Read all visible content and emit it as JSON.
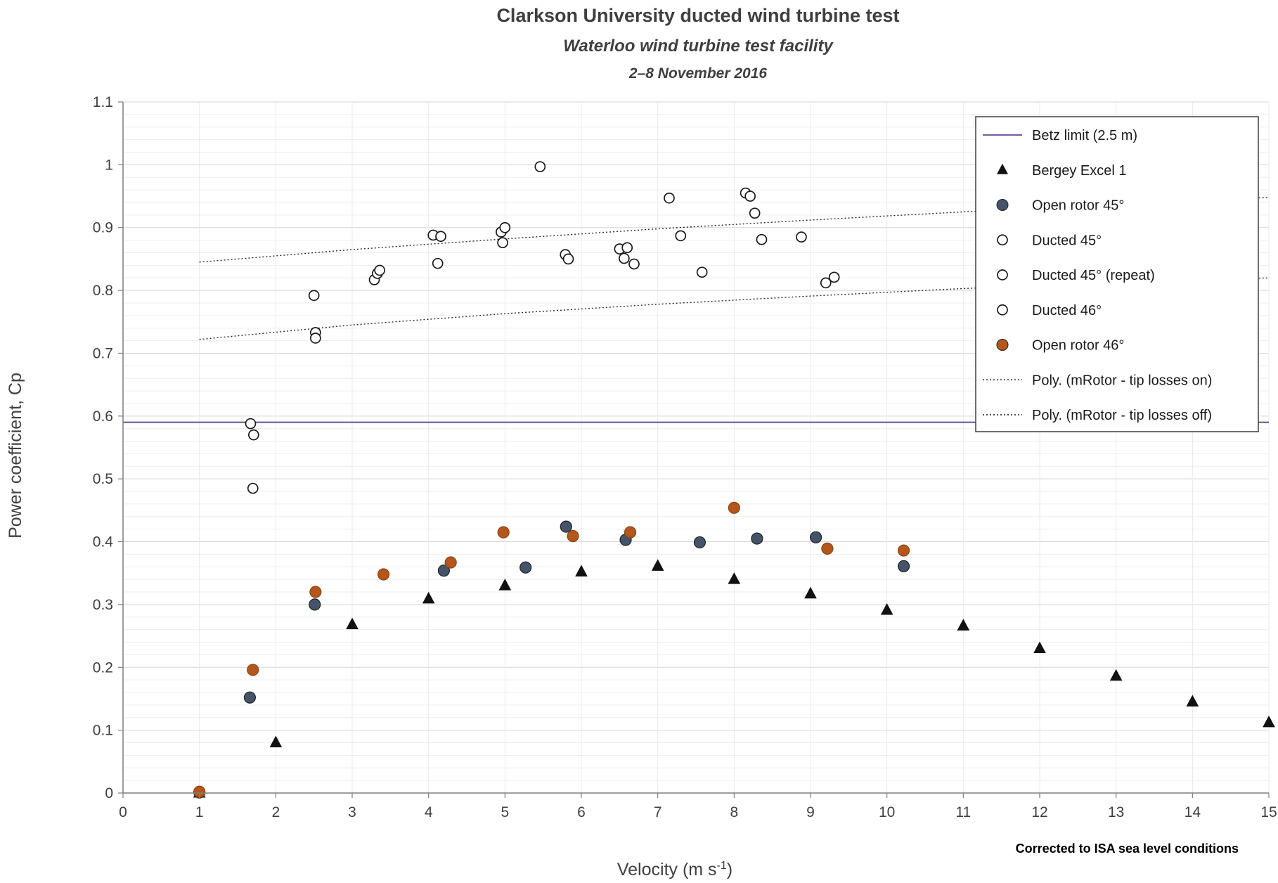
{
  "header": {
    "title": "Clarkson University ducted wind turbine test",
    "subtitle": "Waterloo wind turbine test facility",
    "date_range": "2–8 November 2016"
  },
  "axes": {
    "y_label": "Power coefficient, Cp",
    "x_label_pre": "Velocity (m s",
    "x_label_sup": "-1",
    "x_label_post": ")"
  },
  "note": "Corrected to ISA sea level conditions",
  "legend": {
    "items": [
      {
        "label": "Betz limit (2.5 m)",
        "symbol": "line",
        "color": "#7A5EA8"
      },
      {
        "label": "Bergey Excel 1",
        "symbol": "triangle",
        "color": "#111111"
      },
      {
        "label": "Open rotor 45°",
        "symbol": "circle",
        "color": "#44546A"
      },
      {
        "label": "Ducted 45°",
        "symbol": "open-circle",
        "color": "#1A1A1A"
      },
      {
        "label": "Ducted 45° (repeat)",
        "symbol": "open-circle",
        "color": "#1A1A1A"
      },
      {
        "label": "Ducted 46°",
        "symbol": "open-circle",
        "color": "#1A1A1A"
      },
      {
        "label": "Open rotor 46°",
        "symbol": "circle",
        "color": "#B3571C"
      },
      {
        "label": "Poly. (mRotor - tip losses on)",
        "symbol": "dotted-line",
        "color": "#1A1A1A"
      },
      {
        "label": "Poly. (mRotor - tip losses off)",
        "symbol": "dotted-line",
        "color": "#1A1A1A"
      }
    ]
  },
  "chart_data": {
    "type": "scatter",
    "title": "Clarkson University ducted wind turbine test",
    "subtitle": "Waterloo wind turbine test facility",
    "date_range": "2–8 November 2016",
    "xlabel": "Velocity (m s⁻¹)",
    "ylabel": "Power coefficient, Cp",
    "xlim": [
      0,
      15
    ],
    "ylim": [
      0,
      1.1
    ],
    "x_ticks": [
      0,
      1,
      2,
      3,
      4,
      5,
      6,
      7,
      8,
      9,
      10,
      11,
      12,
      13,
      14,
      15
    ],
    "y_ticks": [
      0,
      0.1,
      0.2,
      0.3,
      0.4,
      0.5,
      0.6,
      0.7,
      0.8,
      0.9,
      1,
      1.1
    ],
    "grid": {
      "h_minor_step": 0.02,
      "h_major_step": 0.1,
      "v_step": 1,
      "grid_on": true
    },
    "legend_position": "top-right",
    "betz_limit": {
      "label": "Betz limit (2.5 m)",
      "y": 0.59,
      "color": "#7A5EA8"
    },
    "series": [
      {
        "name": "Bergey Excel 1",
        "marker": "triangle",
        "fill": "#111111",
        "stroke": "#111111",
        "points": [
          [
            1,
            0.0
          ],
          [
            2,
            0.08
          ],
          [
            3,
            0.268
          ],
          [
            4,
            0.309
          ],
          [
            5,
            0.33
          ],
          [
            6,
            0.352
          ],
          [
            7,
            0.361
          ],
          [
            8,
            0.34
          ],
          [
            9,
            0.317
          ],
          [
            10,
            0.291
          ],
          [
            11,
            0.266
          ],
          [
            12,
            0.23
          ],
          [
            13,
            0.186
          ],
          [
            14,
            0.145
          ],
          [
            15,
            0.112
          ]
        ]
      },
      {
        "name": "Open rotor 45°",
        "marker": "circle",
        "fill": "#44546A",
        "stroke": "#222222",
        "points": [
          [
            1,
            0.001
          ],
          [
            1.66,
            0.152
          ],
          [
            2.51,
            0.3
          ],
          [
            4.2,
            0.354
          ],
          [
            5.27,
            0.359
          ],
          [
            5.8,
            0.424
          ],
          [
            6.58,
            0.403
          ],
          [
            7.55,
            0.399
          ],
          [
            8.3,
            0.405
          ],
          [
            9.07,
            0.407
          ],
          [
            10.22,
            0.361
          ]
        ]
      },
      {
        "name": "Ducted 45°",
        "marker": "open-circle",
        "fill": "#FFFFFF",
        "stroke": "#1A1A1A",
        "points": [
          [
            1.67,
            0.588
          ],
          [
            1.71,
            0.57
          ],
          [
            1.7,
            0.485
          ],
          [
            2.5,
            0.792
          ],
          [
            2.52,
            0.733
          ],
          [
            2.52,
            0.724
          ],
          [
            3.29,
            0.817
          ],
          [
            3.33,
            0.827
          ],
          [
            3.36,
            0.832
          ],
          [
            4.06,
            0.888
          ],
          [
            4.16,
            0.886
          ],
          [
            4.12,
            0.843
          ]
        ]
      },
      {
        "name": "Ducted 45° (repeat)",
        "marker": "open-circle",
        "fill": "#FFFFFF",
        "stroke": "#1A1A1A",
        "points": [
          [
            4.95,
            0.893
          ],
          [
            5.0,
            0.9
          ],
          [
            4.97,
            0.876
          ],
          [
            5.46,
            0.997
          ],
          [
            5.79,
            0.857
          ],
          [
            5.83,
            0.85
          ],
          [
            6.5,
            0.866
          ],
          [
            6.6,
            0.868
          ],
          [
            6.56,
            0.851
          ],
          [
            6.69,
            0.842
          ]
        ]
      },
      {
        "name": "Ducted 46°",
        "marker": "open-circle",
        "fill": "#FFFFFF",
        "stroke": "#1A1A1A",
        "points": [
          [
            7.15,
            0.947
          ],
          [
            7.3,
            0.887
          ],
          [
            7.58,
            0.829
          ],
          [
            8.15,
            0.955
          ],
          [
            8.21,
            0.95
          ],
          [
            8.27,
            0.923
          ],
          [
            8.36,
            0.881
          ],
          [
            8.88,
            0.885
          ],
          [
            9.2,
            0.812
          ],
          [
            9.31,
            0.821
          ]
        ]
      },
      {
        "name": "Open rotor 46°",
        "marker": "circle",
        "fill": "#B3571C",
        "stroke": "#8A4413",
        "points": [
          [
            1,
            0.002
          ],
          [
            1.7,
            0.196
          ],
          [
            2.52,
            0.32
          ],
          [
            3.41,
            0.348
          ],
          [
            4.29,
            0.367
          ],
          [
            4.98,
            0.415
          ],
          [
            5.89,
            0.409
          ],
          [
            6.64,
            0.415
          ],
          [
            8.0,
            0.454
          ],
          [
            9.22,
            0.389
          ],
          [
            10.22,
            0.386
          ]
        ]
      }
    ],
    "poly_lines": [
      {
        "name": "Poly. (mRotor - tip losses on)",
        "points": [
          [
            1,
            0.722
          ],
          [
            3,
            0.745
          ],
          [
            5,
            0.763
          ],
          [
            7,
            0.778
          ],
          [
            9,
            0.791
          ],
          [
            11,
            0.803
          ],
          [
            13,
            0.812
          ],
          [
            15,
            0.82
          ]
        ]
      },
      {
        "name": "Poly. (mRotor - tip losses off)",
        "points": [
          [
            1,
            0.845
          ],
          [
            3,
            0.865
          ],
          [
            5,
            0.882
          ],
          [
            7,
            0.898
          ],
          [
            9,
            0.912
          ],
          [
            11,
            0.925
          ],
          [
            13,
            0.937
          ],
          [
            15,
            0.948
          ]
        ]
      }
    ]
  }
}
